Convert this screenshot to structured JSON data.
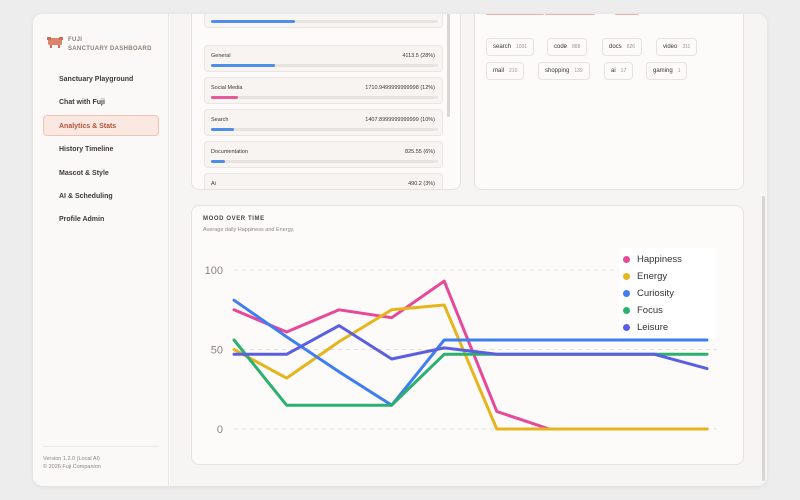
{
  "app": {
    "title_line1": "FUJI",
    "title_line2": "SANCTUARY DASHBOARD"
  },
  "sidebar": {
    "items": [
      {
        "label": "Sanctuary Playground"
      },
      {
        "label": "Chat with Fuji"
      },
      {
        "label": "Analytics & Stats"
      },
      {
        "label": "History Timeline"
      },
      {
        "label": "Mascot & Style"
      },
      {
        "label": "AI & Scheduling"
      },
      {
        "label": "Profile Admin"
      }
    ],
    "active_index": 2,
    "footer": {
      "version": "Version 1.2.0 (Local AI)",
      "copyright": "© 2026 Fuji Companion"
    }
  },
  "categories": {
    "rows": [
      {
        "name": "General",
        "value": "4113.5 (28%)",
        "fraction": 0.28,
        "color": "#4d8ee6"
      },
      {
        "name": "Social Media",
        "value": "1710.9499999999998 (12%)",
        "fraction": 0.12,
        "color": "#e6599a"
      },
      {
        "name": "Search",
        "value": "1407.8999999999999 (10%)",
        "fraction": 0.1,
        "color": "#4d8ee6"
      },
      {
        "name": "Documentation",
        "value": "825.55 (6%)",
        "fraction": 0.06,
        "color": "#4d8ee6"
      },
      {
        "name": "Ai",
        "value": "490.2 (3%)",
        "fraction": 0.03,
        "color": "#4d8ee6"
      }
    ]
  },
  "tags": {
    "items": [
      {
        "name": "search",
        "count": "1091"
      },
      {
        "name": "code",
        "count": "888"
      },
      {
        "name": "docs",
        "count": "826"
      },
      {
        "name": "video",
        "count": "311"
      },
      {
        "name": "mail",
        "count": "210"
      },
      {
        "name": "shopping",
        "count": "139"
      },
      {
        "name": "ai",
        "count": "17"
      },
      {
        "name": "gaming",
        "count": "1"
      }
    ]
  },
  "mood": {
    "title": "MOOD OVER TIME",
    "subtitle": "Average daily Happiness and Energy."
  },
  "chart_data": {
    "type": "line",
    "ylim": [
      0,
      100
    ],
    "yticks": [
      "100",
      "50",
      "0"
    ],
    "grid": true,
    "legend_position": "top-right",
    "series": [
      {
        "name": "Happiness",
        "color": "#e6499a",
        "values": [
          75,
          61,
          75,
          70,
          93,
          11,
          0,
          0,
          0,
          0
        ]
      },
      {
        "name": "Energy",
        "color": "#e6b51d",
        "values": [
          50,
          32,
          55,
          75,
          78,
          0,
          0,
          0,
          0,
          0
        ]
      },
      {
        "name": "Curiosity",
        "color": "#3f7ef0",
        "values": [
          81,
          58,
          36,
          15,
          56,
          56,
          56,
          56,
          56,
          56
        ]
      },
      {
        "name": "Focus",
        "color": "#2bb06f",
        "values": [
          56,
          15,
          15,
          15,
          47,
          47,
          47,
          47,
          47,
          47
        ]
      },
      {
        "name": "Leisure",
        "color": "#5a5fe0",
        "values": [
          47,
          47,
          65,
          44,
          51,
          47,
          47,
          47,
          47,
          38
        ]
      }
    ]
  }
}
